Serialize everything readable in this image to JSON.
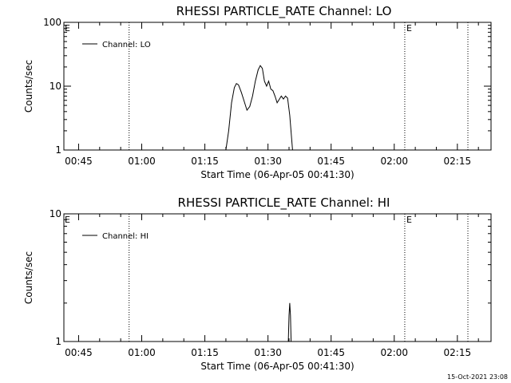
{
  "chart_data": [
    {
      "type": "line",
      "title": "RHESSI PARTICLE_RATE Channel: LO",
      "xlabel": "Start Time (06-Apr-05 00:41:30)",
      "ylabel": "Counts/sec",
      "xlim": [
        "00:41:30",
        "02:23:00"
      ],
      "ylim": [
        1,
        100
      ],
      "yscale": "log",
      "x_ticks": [
        "00:45",
        "01:00",
        "01:15",
        "01:30",
        "01:45",
        "02:00",
        "02:15"
      ],
      "y_ticks": [
        "1",
        "10",
        "100"
      ],
      "event_lines": [
        "00:57:00",
        "02:02:30",
        "02:17:30"
      ],
      "event_markers": [
        "E",
        "E"
      ],
      "legend": {
        "placement": "top-left",
        "entries": [
          "Channel: LO"
        ]
      },
      "series": [
        {
          "name": "Channel: LO",
          "points": [
            [
              "01:20:00",
              1.0
            ],
            [
              "01:20:40",
              2.0
            ],
            [
              "01:21:20",
              5.5
            ],
            [
              "01:22:00",
              9.5
            ],
            [
              "01:22:30",
              11.0
            ],
            [
              "01:23:00",
              10.5
            ],
            [
              "01:23:40",
              8.0
            ],
            [
              "01:24:20",
              5.8
            ],
            [
              "01:25:00",
              4.2
            ],
            [
              "01:25:40",
              4.8
            ],
            [
              "01:26:20",
              7.0
            ],
            [
              "01:27:00",
              12.0
            ],
            [
              "01:27:40",
              18.0
            ],
            [
              "01:28:10",
              21.0
            ],
            [
              "01:28:40",
              19.0
            ],
            [
              "01:29:10",
              12.0
            ],
            [
              "01:29:40",
              10.0
            ],
            [
              "01:30:10",
              12.0
            ],
            [
              "01:30:40",
              9.0
            ],
            [
              "01:31:10",
              8.5
            ],
            [
              "01:31:40",
              7.0
            ],
            [
              "01:32:10",
              5.5
            ],
            [
              "01:32:40",
              6.2
            ],
            [
              "01:33:10",
              7.0
            ],
            [
              "01:33:40",
              6.3
            ],
            [
              "01:34:10",
              7.0
            ],
            [
              "01:34:40",
              6.5
            ],
            [
              "01:35:10",
              3.5
            ],
            [
              "01:35:50",
              1.0
            ]
          ]
        }
      ]
    },
    {
      "type": "line",
      "title": "RHESSI PARTICLE_RATE Channel: HI",
      "xlabel": "Start Time (06-Apr-05 00:41:30)",
      "ylabel": "Counts/sec",
      "xlim": [
        "00:41:30",
        "02:23:00"
      ],
      "ylim": [
        1,
        10
      ],
      "yscale": "log",
      "x_ticks": [
        "00:45",
        "01:00",
        "01:15",
        "01:30",
        "01:45",
        "02:00",
        "02:15"
      ],
      "y_ticks": [
        "1",
        "10"
      ],
      "event_lines": [
        "00:57:00",
        "02:02:30",
        "02:17:30"
      ],
      "event_markers": [
        "E",
        "E"
      ],
      "legend": {
        "placement": "top-left",
        "entries": [
          "Channel: HI"
        ]
      },
      "series": [
        {
          "name": "Channel: HI",
          "points": [
            [
              "01:34:50",
              1.0
            ],
            [
              "01:35:00",
              1.6
            ],
            [
              "01:35:10",
              2.0
            ],
            [
              "01:35:20",
              1.6
            ],
            [
              "01:35:30",
              1.0
            ]
          ]
        }
      ]
    }
  ],
  "footer": {
    "timestamp": "15-Oct-2021 23:08"
  },
  "colors": {
    "background": "#ffffff",
    "foreground": "#000000"
  }
}
